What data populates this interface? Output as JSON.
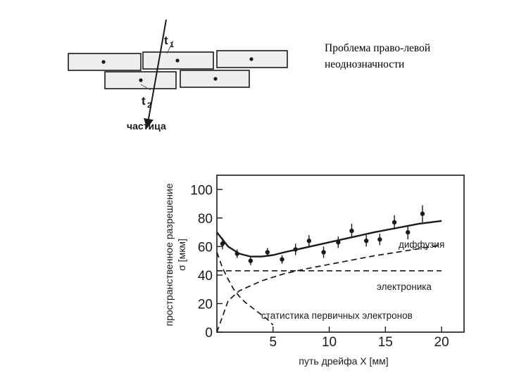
{
  "slide": {
    "title_lines": [
      "Проблема право-левой",
      "неоднозначности"
    ]
  },
  "drift_diagram": {
    "label_t1": "t",
    "label_t1_sub": "1",
    "label_t2": "t",
    "label_t2_sub": "2",
    "label_particle": "частица"
  },
  "chart_data": {
    "type": "scatter",
    "xlabel": "путь дрейфа X [мм]",
    "ylabel_line1": "пространственное разрешение",
    "ylabel_line2": "σ [мкм]",
    "xlim": [
      0,
      22
    ],
    "ylim": [
      0,
      110
    ],
    "x_ticks": [
      5,
      10,
      15,
      20
    ],
    "y_ticks": [
      0,
      20,
      40,
      60,
      80,
      100
    ],
    "grid": false,
    "measurements": {
      "x": [
        0.5,
        1.8,
        3.0,
        4.5,
        5.8,
        7.0,
        8.2,
        9.5,
        10.8,
        12.0,
        13.3,
        14.5,
        15.8,
        17.0,
        18.3
      ],
      "y": [
        62,
        55,
        50,
        56,
        51,
        58,
        64,
        56,
        63,
        71,
        64,
        65,
        77,
        70,
        83
      ],
      "err": [
        4,
        3,
        3,
        3,
        3,
        4,
        4,
        4,
        4,
        5,
        4,
        4,
        5,
        5,
        6
      ]
    },
    "series": [
      {
        "name": "диффузия",
        "style": "dashed",
        "x": [
          0,
          1,
          2,
          4,
          6,
          8,
          10,
          12,
          14,
          16,
          18,
          20
        ],
        "y": [
          0,
          22,
          29,
          36,
          41,
          44.5,
          47.5,
          50.5,
          53.5,
          56,
          58.5,
          61
        ]
      },
      {
        "name": "электроника",
        "style": "dashed",
        "x": [
          0,
          20
        ],
        "y": [
          43,
          43
        ]
      },
      {
        "name": "статистика первичных электронов",
        "style": "dashed",
        "x": [
          0,
          0.5,
          1,
          1.5,
          2,
          2.5,
          3,
          3.5,
          4,
          4.5,
          5
        ],
        "y": [
          56,
          45,
          37,
          30,
          25,
          21,
          18,
          15,
          12,
          9,
          5
        ]
      },
      {
        "name": "",
        "style": "solid",
        "x": [
          0,
          1,
          2,
          3,
          4,
          5,
          6,
          8,
          10,
          12,
          14,
          16,
          18,
          20
        ],
        "y": [
          70,
          60,
          55,
          53,
          53,
          54,
          56,
          59.5,
          63,
          66.5,
          70,
          73,
          76,
          78
        ]
      }
    ]
  },
  "colors": {
    "ink": "#1a1a1a",
    "tube_fill": "#eeeeee"
  }
}
